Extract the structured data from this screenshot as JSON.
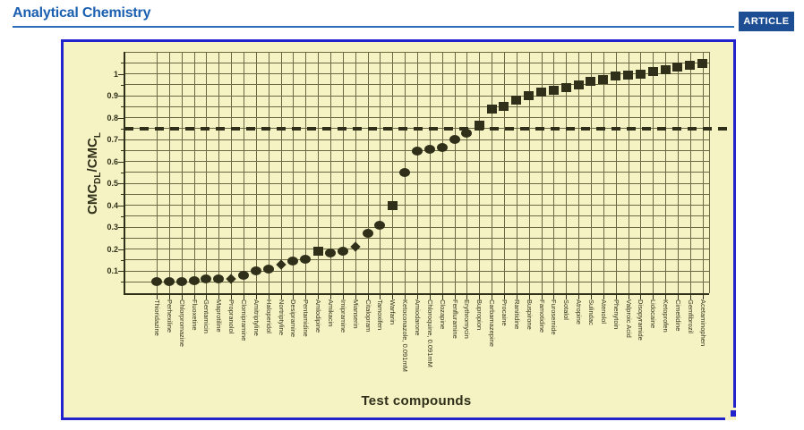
{
  "header": {
    "journal_title": "Analytical Chemistry",
    "badge_label": "ARTICLE"
  },
  "colors": {
    "title_blue": "#1a5fb0",
    "rule_blue": "#2a6ebb",
    "badge_blue": "#1d4e94",
    "figure_border_blue": "#2323ce",
    "figure_background": "#f5f3c3",
    "ink": "#30301a",
    "gridline": "#6a6944"
  },
  "chart_data": {
    "type": "scatter",
    "xlabel": "Test compounds",
    "ylabel": "CMC_DL/CMC_L",
    "ylabel_parts": [
      {
        "text": "CMC",
        "sub": false
      },
      {
        "text": "DL",
        "sub": true
      },
      {
        "text": "/CMC",
        "sub": false
      },
      {
        "text": "L",
        "sub": true
      }
    ],
    "ylim": [
      0,
      1.1
    ],
    "ytick_labels": [
      "0.1",
      "0.2",
      "0.3",
      "0.4",
      "0.5",
      "0.6",
      "0.7",
      "0.8",
      "0.9",
      "1"
    ],
    "grid": "both",
    "threshold": {
      "value": 0.75,
      "style": "dashed"
    },
    "points": [
      {
        "label": "Thioridazine",
        "value": 0.05,
        "marker": "circle"
      },
      {
        "label": "Perhexiline",
        "value": 0.05,
        "marker": "circle"
      },
      {
        "label": "Chlorpromazine",
        "value": 0.05,
        "marker": "circle"
      },
      {
        "label": "Fluoxetine",
        "value": 0.055,
        "marker": "circle"
      },
      {
        "label": "Gentamicin",
        "value": 0.065,
        "marker": "circle"
      },
      {
        "label": "Maprotiline",
        "value": 0.065,
        "marker": "circle"
      },
      {
        "label": "Propranolol",
        "value": 0.065,
        "marker": "diamond"
      },
      {
        "label": "Clomipramine",
        "value": 0.08,
        "marker": "circle"
      },
      {
        "label": "Amitriptyline",
        "value": 0.1,
        "marker": "circle"
      },
      {
        "label": "Haloperidol",
        "value": 0.11,
        "marker": "circle"
      },
      {
        "label": "Nortriptyline",
        "value": 0.13,
        "marker": "diamond"
      },
      {
        "label": "Desipramine",
        "value": 0.145,
        "marker": "circle"
      },
      {
        "label": "Pentamidine",
        "value": 0.155,
        "marker": "circle"
      },
      {
        "label": "Amlodipine",
        "value": 0.19,
        "marker": "square"
      },
      {
        "label": "Amikacin",
        "value": 0.18,
        "marker": "circle"
      },
      {
        "label": "Imipramine",
        "value": 0.19,
        "marker": "circle"
      },
      {
        "label": "Mianserin",
        "value": 0.21,
        "marker": "diamond"
      },
      {
        "label": "Citalopram",
        "value": 0.27,
        "marker": "circle"
      },
      {
        "label": "Tamoxifen",
        "value": 0.31,
        "marker": "circle"
      },
      {
        "label": "Warfarin",
        "value": 0.4,
        "marker": "square"
      },
      {
        "label": "Ketoconazole, 0.091mM",
        "value": 0.55,
        "marker": "circle"
      },
      {
        "label": "Amiodarone",
        "value": 0.645,
        "marker": "circle"
      },
      {
        "label": "Chloroquine, 0.091mM",
        "value": 0.655,
        "marker": "circle"
      },
      {
        "label": "Clozapine",
        "value": 0.665,
        "marker": "circle"
      },
      {
        "label": "Fenfluramine",
        "value": 0.7,
        "marker": "circle"
      },
      {
        "label": "Erythromycin",
        "value": 0.73,
        "marker": "circle"
      },
      {
        "label": "Bupropion",
        "value": 0.765,
        "marker": "square"
      },
      {
        "label": "Carbamazepine",
        "value": 0.84,
        "marker": "square"
      },
      {
        "label": "Procaine",
        "value": 0.85,
        "marker": "square"
      },
      {
        "label": "Ranitidine",
        "value": 0.88,
        "marker": "square"
      },
      {
        "label": "Buspirone",
        "value": 0.9,
        "marker": "square"
      },
      {
        "label": "Famotidine",
        "value": 0.915,
        "marker": "square"
      },
      {
        "label": "Furosemide",
        "value": 0.925,
        "marker": "square"
      },
      {
        "label": "Sotalol",
        "value": 0.935,
        "marker": "square"
      },
      {
        "label": "Atropine",
        "value": 0.95,
        "marker": "square"
      },
      {
        "label": "Sulindac",
        "value": 0.965,
        "marker": "square"
      },
      {
        "label": "Atenolol",
        "value": 0.975,
        "marker": "square"
      },
      {
        "label": "Phenytoin",
        "value": 0.99,
        "marker": "square"
      },
      {
        "label": "Valproic Acid",
        "value": 0.995,
        "marker": "square"
      },
      {
        "label": "Disopyramide",
        "value": 1.0,
        "marker": "square"
      },
      {
        "label": "Lidocaine",
        "value": 1.01,
        "marker": "square"
      },
      {
        "label": "Ketoprofen",
        "value": 1.02,
        "marker": "square"
      },
      {
        "label": "Cimetidine",
        "value": 1.03,
        "marker": "square"
      },
      {
        "label": "Gemfibrozil",
        "value": 1.04,
        "marker": "square"
      },
      {
        "label": "Acetaminophen",
        "value": 1.045,
        "marker": "square"
      }
    ]
  }
}
